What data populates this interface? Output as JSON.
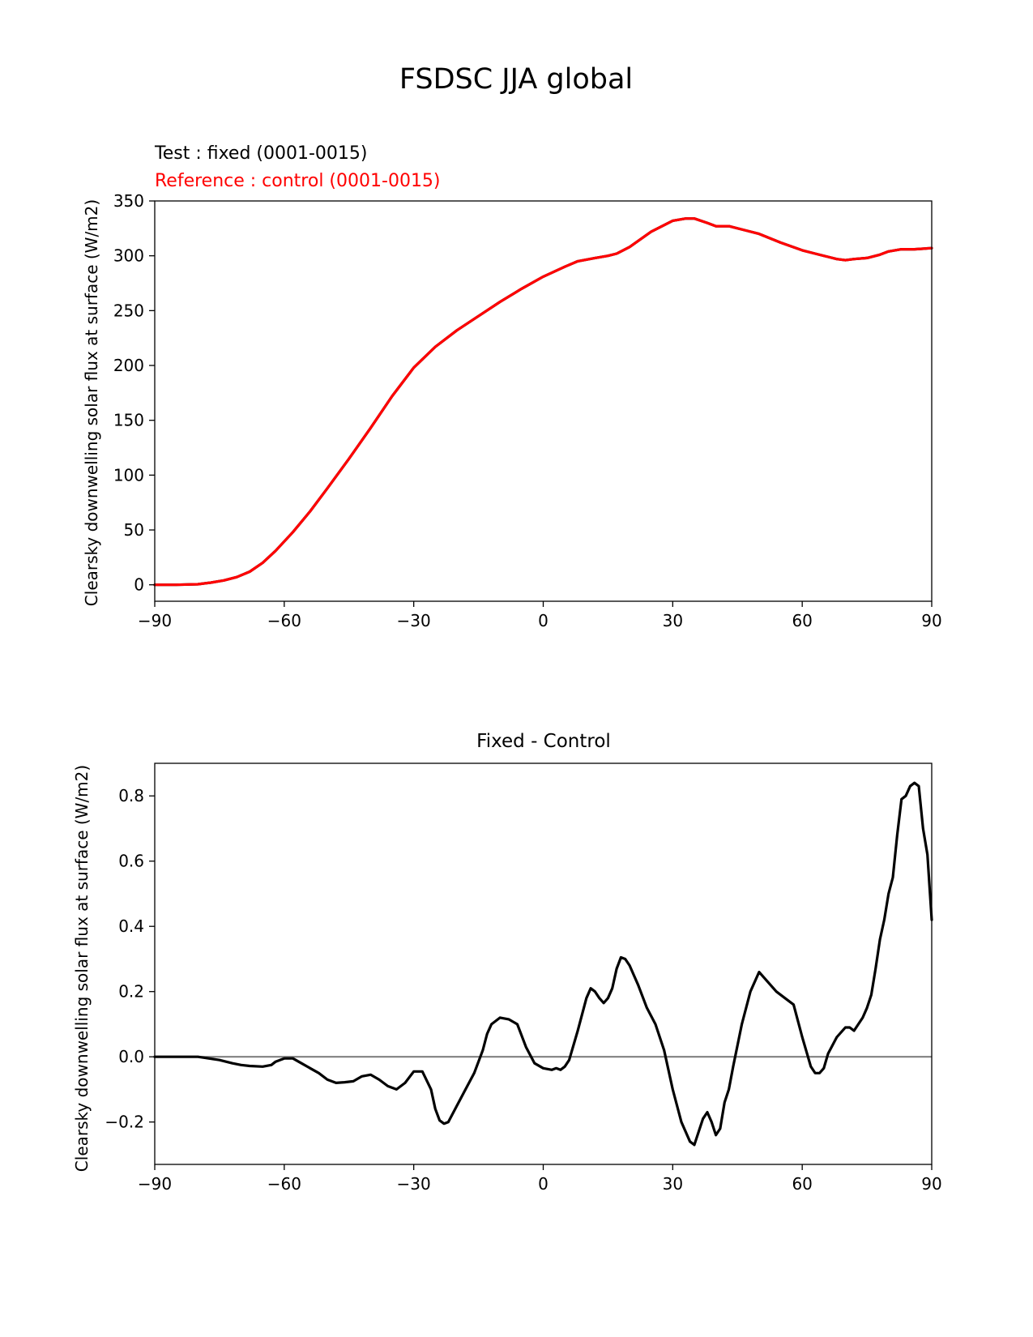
{
  "figure": {
    "suptitle": "FSDSC JJA global"
  },
  "chart_data": [
    {
      "type": "line",
      "title_lines": [
        "Test : fixed (0001-0015)",
        "Reference : control (0001-0015)"
      ],
      "title_colors": [
        "#000000",
        "#ff0000"
      ],
      "xlabel": "",
      "ylabel": "Clearsky downwelling solar flux at surface (W/m2)",
      "xlim": [
        -90,
        90
      ],
      "ylim": [
        -15,
        350
      ],
      "xticks": [
        -90,
        -60,
        -30,
        0,
        30,
        60,
        90
      ],
      "xtick_labels": [
        "−90",
        "−60",
        "−30",
        "0",
        "30",
        "60",
        "90"
      ],
      "yticks": [
        0,
        50,
        100,
        150,
        200,
        250,
        300,
        350
      ],
      "ytick_labels": [
        "0",
        "50",
        "100",
        "150",
        "200",
        "250",
        "300",
        "350"
      ],
      "grid": false,
      "series": [
        {
          "color": "#000000",
          "x": [
            -90,
            -85,
            -80,
            -77,
            -74,
            -71,
            -68,
            -65,
            -62,
            -58,
            -54,
            -50,
            -45,
            -40,
            -35,
            -30,
            -25,
            -20,
            -15,
            -10,
            -5,
            0,
            5,
            8,
            12,
            15,
            17,
            20,
            25,
            28,
            30,
            33,
            35,
            38,
            40,
            43,
            47,
            50,
            55,
            60,
            63,
            66,
            68,
            70,
            72,
            75,
            78,
            80,
            83,
            86,
            90
          ],
          "values": [
            0,
            0,
            0.5,
            2,
            4,
            7,
            12,
            20,
            31,
            48,
            67,
            88,
            115,
            143,
            172,
            198,
            217,
            232,
            245,
            258,
            270,
            281,
            290,
            295,
            298,
            300,
            302,
            308,
            322,
            328,
            332,
            334,
            334,
            330,
            327,
            327,
            323,
            320,
            312,
            305,
            302,
            299,
            297,
            296,
            297,
            298,
            301,
            304,
            306,
            306,
            307
          ]
        },
        {
          "color": "#ff0000",
          "x": [
            -90,
            -85,
            -80,
            -77,
            -74,
            -71,
            -68,
            -65,
            -62,
            -58,
            -54,
            -50,
            -45,
            -40,
            -35,
            -30,
            -25,
            -20,
            -15,
            -10,
            -5,
            0,
            5,
            8,
            12,
            15,
            17,
            20,
            25,
            28,
            30,
            33,
            35,
            38,
            40,
            43,
            47,
            50,
            55,
            60,
            63,
            66,
            68,
            70,
            72,
            75,
            78,
            80,
            83,
            86,
            90
          ],
          "values": [
            0,
            0,
            0.5,
            2,
            4,
            7,
            12,
            20,
            31,
            48,
            67,
            88,
            115,
            143,
            172,
            198,
            217,
            232,
            245,
            258,
            270,
            281,
            290,
            295,
            298,
            300,
            302,
            308,
            322,
            328,
            332,
            334,
            334,
            330,
            327,
            327,
            323,
            320,
            312,
            305,
            302,
            299,
            297,
            296,
            297,
            298,
            301,
            304,
            306,
            306,
            307
          ]
        }
      ]
    },
    {
      "type": "line",
      "title": "Fixed - Control",
      "xlabel": "",
      "ylabel": "Clearsky downwelling solar flux at surface (W/m2)",
      "xlim": [
        -90,
        90
      ],
      "ylim": [
        -0.33,
        0.9
      ],
      "xticks": [
        -90,
        -60,
        -30,
        0,
        30,
        60,
        90
      ],
      "xtick_labels": [
        "−90",
        "−60",
        "−30",
        "0",
        "30",
        "60",
        "90"
      ],
      "yticks": [
        -0.2,
        0.0,
        0.2,
        0.4,
        0.6,
        0.8
      ],
      "ytick_labels": [
        "−0.2",
        "0.0",
        "0.2",
        "0.4",
        "0.6",
        "0.8"
      ],
      "grid": false,
      "reference_line": {
        "y": 0,
        "color": "#808080"
      },
      "series": [
        {
          "color": "#000000",
          "x": [
            -90,
            -85,
            -80,
            -75,
            -72,
            -70,
            -68,
            -65,
            -63,
            -62,
            -60,
            -58,
            -56,
            -54,
            -52,
            -50,
            -48,
            -46,
            -44,
            -42,
            -40,
            -38,
            -36,
            -34,
            -32,
            -30,
            -28,
            -26,
            -25,
            -24,
            -23,
            -22,
            -20,
            -18,
            -16,
            -14,
            -13,
            -12,
            -10,
            -8,
            -6,
            -4,
            -2,
            0,
            2,
            3,
            4,
            5,
            6,
            8,
            10,
            11,
            12,
            13,
            14,
            15,
            16,
            17,
            18,
            19,
            20,
            21,
            22,
            24,
            26,
            28,
            30,
            32,
            34,
            35,
            36,
            37,
            38,
            39,
            40,
            41,
            42,
            43,
            44,
            46,
            48,
            50,
            52,
            54,
            56,
            58,
            60,
            62,
            63,
            64,
            65,
            66,
            68,
            70,
            71,
            72,
            74,
            75,
            76,
            77,
            78,
            79,
            80,
            81,
            82,
            83,
            84,
            85,
            86,
            87,
            88,
            89,
            90
          ],
          "values": [
            0.0,
            0.0,
            0.0,
            -0.01,
            -0.02,
            -0.025,
            -0.028,
            -0.03,
            -0.025,
            -0.015,
            -0.005,
            -0.005,
            -0.02,
            -0.035,
            -0.05,
            -0.07,
            -0.08,
            -0.078,
            -0.075,
            -0.06,
            -0.055,
            -0.07,
            -0.09,
            -0.1,
            -0.08,
            -0.045,
            -0.045,
            -0.1,
            -0.16,
            -0.195,
            -0.205,
            -0.2,
            -0.15,
            -0.1,
            -0.05,
            0.02,
            0.07,
            0.1,
            0.12,
            0.115,
            0.1,
            0.03,
            -0.02,
            -0.035,
            -0.04,
            -0.035,
            -0.04,
            -0.03,
            -0.01,
            0.08,
            0.18,
            0.21,
            0.2,
            0.18,
            0.165,
            0.18,
            0.21,
            0.27,
            0.305,
            0.3,
            0.28,
            0.25,
            0.22,
            0.15,
            0.1,
            0.02,
            -0.1,
            -0.2,
            -0.26,
            -0.27,
            -0.23,
            -0.19,
            -0.17,
            -0.2,
            -0.24,
            -0.22,
            -0.14,
            -0.1,
            -0.03,
            0.1,
            0.2,
            0.26,
            0.23,
            0.2,
            0.18,
            0.16,
            0.06,
            -0.03,
            -0.05,
            -0.05,
            -0.035,
            0.01,
            0.06,
            0.09,
            0.09,
            0.08,
            0.12,
            0.15,
            0.19,
            0.27,
            0.36,
            0.42,
            0.5,
            0.55,
            0.68,
            0.79,
            0.8,
            0.83,
            0.84,
            0.83,
            0.7,
            0.62,
            0.42
          ]
        }
      ]
    }
  ]
}
